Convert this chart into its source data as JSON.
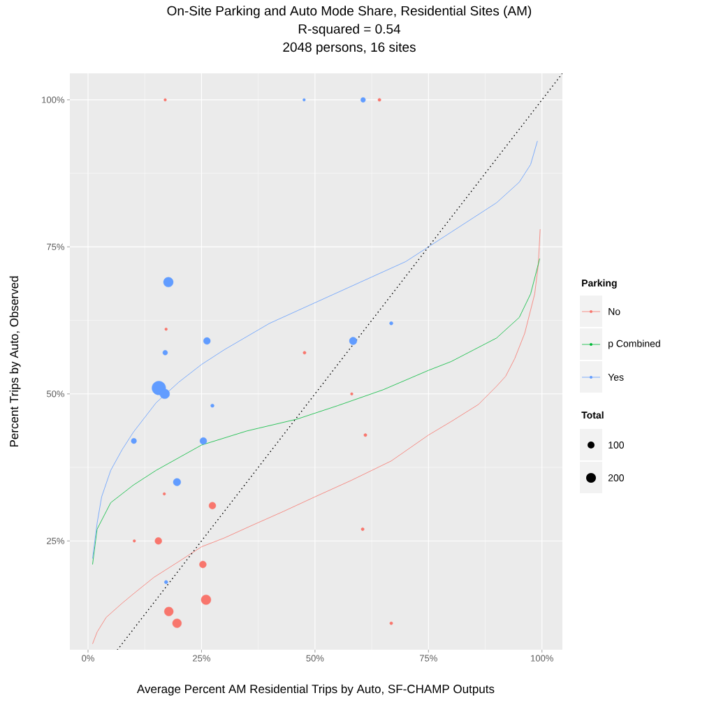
{
  "chart_data": {
    "type": "scatter",
    "title": "On-Site Parking and Auto Mode Share, Residential Sites (AM)",
    "subtitle": "R-squared = 0.54",
    "annotations": [
      "2048 persons, 16 sites",
      "Total"
    ],
    "xlabel": "Average Percent AM Residential Trips by Auto, SF-CHAMP Outputs",
    "ylabel": "Percent Trips by Auto, Observed",
    "legend_title": "Parking",
    "legend": "right",
    "grid": true,
    "size_legend": [
      100,
      200
    ],
    "xlim": [
      -4,
      104.5
    ],
    "ylim": [
      6.5,
      104.5
    ],
    "xticks": [
      {
        "value": 0,
        "label": "0%"
      },
      {
        "value": 25,
        "label": "25%"
      },
      {
        "value": 50,
        "label": "50%"
      },
      {
        "value": 75,
        "label": "75%"
      },
      {
        "value": 100,
        "label": "100%"
      }
    ],
    "yticks": [
      {
        "value": 25,
        "label": "25%"
      },
      {
        "value": 50,
        "label": "50%"
      },
      {
        "value": 75,
        "label": "75%"
      },
      {
        "value": 100,
        "label": "100%"
      }
    ],
    "series": [
      {
        "type": "scatter",
        "color": "#f8766d",
        "marker": "circle",
        "x": [
          17.0,
          64.2,
          17.2,
          47.7,
          58.1,
          61.1,
          16.8,
          27.4,
          10.2,
          15.5,
          60.5,
          25.3,
          26.0,
          17.8,
          19.6,
          66.8
        ],
        "values": [
          100,
          100,
          61,
          57,
          50,
          43,
          33,
          31,
          25,
          25,
          27,
          21,
          15,
          13,
          11,
          11
        ],
        "sizes": [
          15,
          20,
          15,
          20,
          15,
          20,
          15,
          100,
          15,
          100,
          20,
          100,
          200,
          170,
          170,
          20
        ]
      },
      {
        "type": "scatter",
        "color": "#619cff",
        "marker": "circle",
        "x": [
          47.6,
          60.6,
          17.7,
          26.2,
          17.0,
          58.4,
          66.8,
          15.6,
          16.9,
          27.4,
          10.1,
          25.4,
          19.6,
          17.2
        ],
        "values": [
          100,
          100,
          69,
          59,
          57,
          59,
          62,
          51,
          50,
          48,
          42,
          42,
          35,
          18
        ],
        "sizes": [
          15,
          50,
          200,
          100,
          50,
          120,
          25,
          400,
          200,
          25,
          60,
          100,
          120,
          25
        ]
      },
      {
        "type": "line",
        "name": "No",
        "color": "#f8766d",
        "x": [
          1,
          2,
          4,
          7.5,
          10,
          14.5,
          20,
          25,
          30,
          36,
          43,
          50,
          58,
          66.8,
          75,
          80,
          86,
          90,
          92,
          94,
          96.2,
          98.4,
          99.2,
          99.6
        ],
        "values": [
          7.5,
          9.5,
          12,
          14.4,
          16,
          18.8,
          21.5,
          24,
          25.5,
          27.6,
          30,
          32.5,
          35.3,
          38.6,
          43,
          45.3,
          48.2,
          51.3,
          53,
          56,
          60.3,
          67,
          72,
          78
        ]
      },
      {
        "type": "line",
        "name": "p Combined",
        "color": "#00ba38",
        "x": [
          1,
          2,
          5,
          10,
          15,
          25,
          35,
          46,
          55,
          65,
          75,
          80,
          85,
          90,
          95,
          97.5,
          99,
          99.5
        ],
        "values": [
          21,
          27,
          31.5,
          34.5,
          37,
          41.3,
          43.7,
          45.7,
          48,
          50.7,
          54,
          55.5,
          57.5,
          59.5,
          63,
          67,
          71.5,
          73
        ]
      },
      {
        "type": "line",
        "name": "Yes",
        "color": "#619cff",
        "x": [
          1,
          2,
          3,
          5,
          7.5,
          10,
          15,
          20,
          25,
          30,
          40,
          50,
          60,
          70,
          75,
          80,
          85,
          90,
          95,
          97.5,
          99
        ],
        "values": [
          22,
          28,
          32.5,
          37,
          40.5,
          43.5,
          48.5,
          52,
          55,
          57.5,
          62,
          65.5,
          69,
          72.5,
          75,
          77.5,
          80,
          82.5,
          86,
          89,
          93
        ]
      },
      {
        "type": "line",
        "color": "#000000",
        "line_style": "dotted",
        "x": [
          6.5,
          104.5
        ],
        "values": [
          6.5,
          104.5
        ]
      }
    ]
  }
}
